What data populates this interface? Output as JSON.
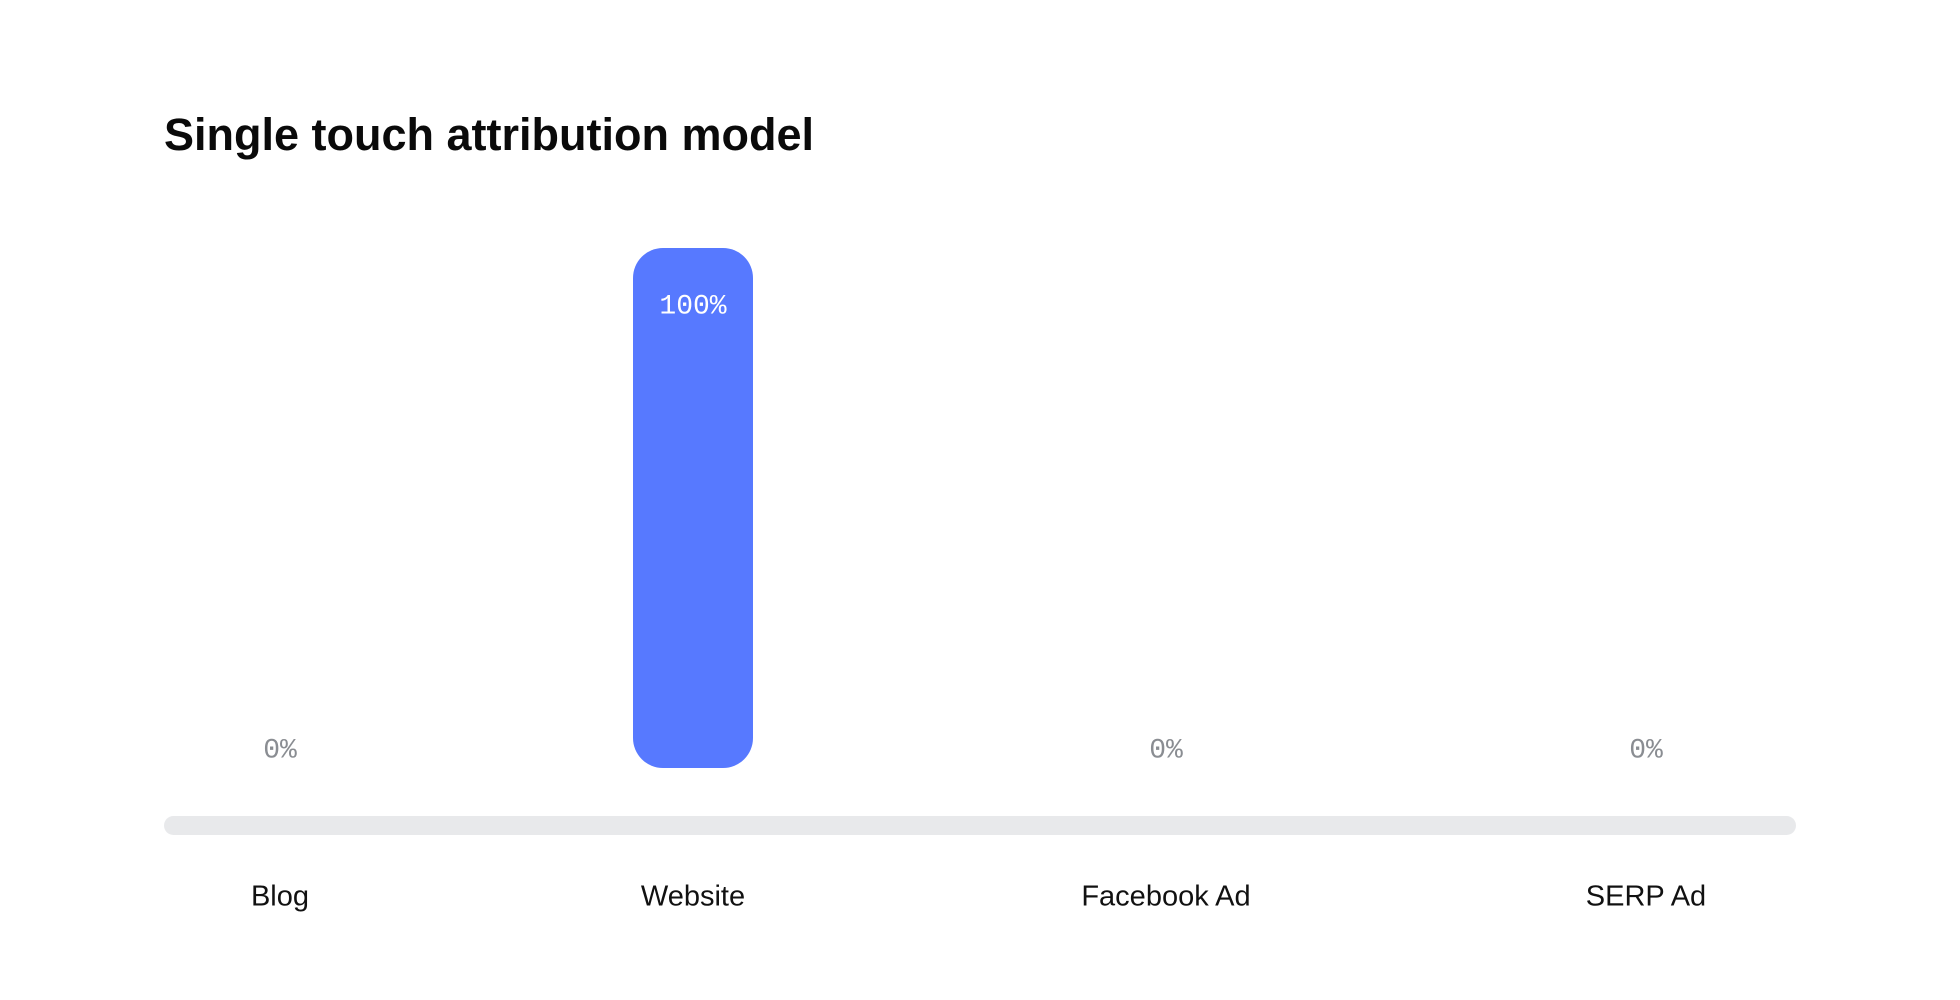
{
  "chart_data": {
    "type": "bar",
    "title": "Single touch attribution model",
    "categories": [
      "Blog",
      "Website",
      "Facebook Ad",
      "SERP Ad"
    ],
    "values": [
      0,
      100,
      0,
      0
    ],
    "value_labels": [
      "0%",
      "100%",
      "0%",
      "0%"
    ],
    "color": "#5779ff",
    "ylim": [
      0,
      100
    ]
  }
}
